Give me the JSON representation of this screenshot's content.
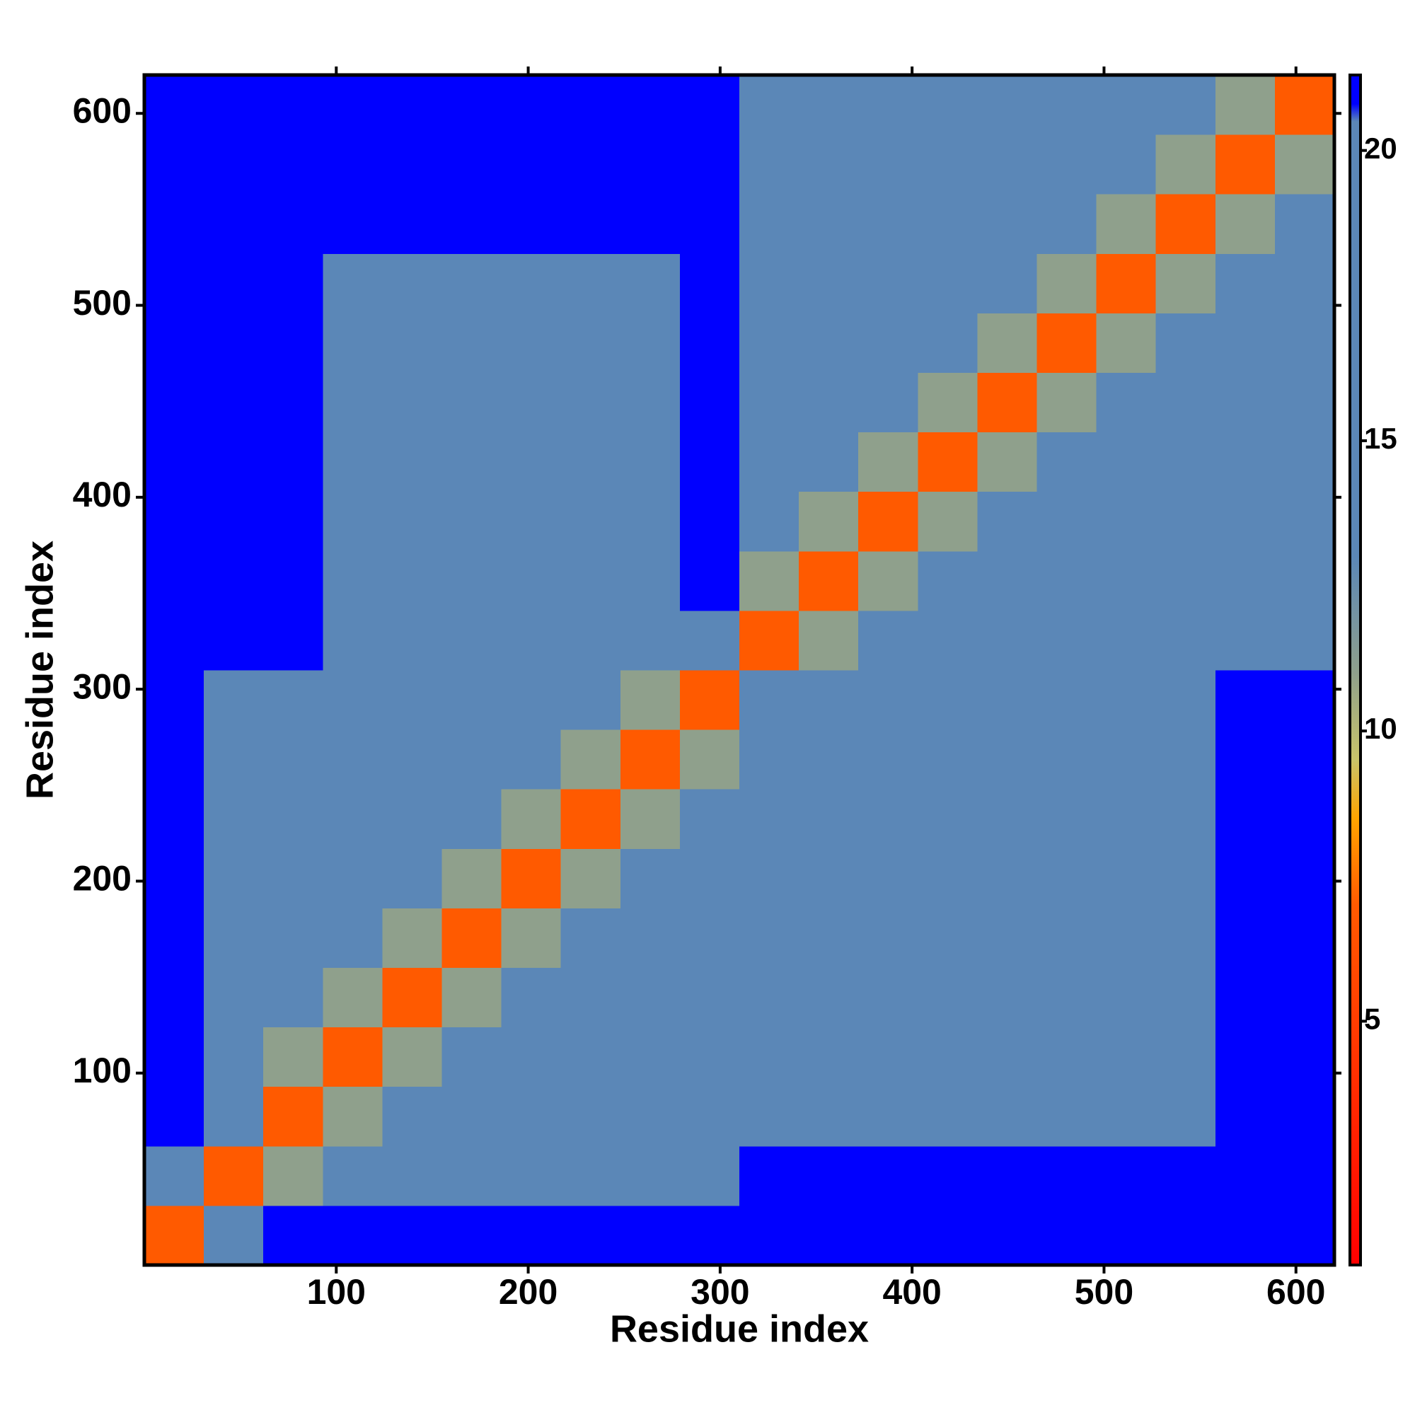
{
  "chart_data": {
    "type": "heatmap",
    "xlabel": "Residue index",
    "ylabel": "Residue index",
    "xlim": [
      0,
      620
    ],
    "ylim": [
      0,
      620
    ],
    "xticks": [
      100,
      200,
      300,
      400,
      500,
      600
    ],
    "yticks": [
      100,
      200,
      300,
      400,
      500,
      600
    ],
    "colorlim": [
      0.8,
      21.3
    ],
    "colorticks": [
      5,
      10,
      15,
      20
    ],
    "colorscale": [
      [
        0.8,
        "#ff0000"
      ],
      [
        7,
        "#ff5a00"
      ],
      [
        8.5,
        "#ffa500"
      ],
      [
        9.5,
        "#c9c46a"
      ],
      [
        11,
        "#8fa08c"
      ],
      [
        13,
        "#5b87b7"
      ],
      [
        20.5,
        "#5b87b7"
      ],
      [
        20.8,
        "#0000ff"
      ],
      [
        21.3,
        "#0000ff"
      ]
    ],
    "z": [
      [
        7,
        19,
        21,
        21,
        21,
        21,
        21,
        21,
        21,
        21,
        21,
        21,
        21,
        21,
        21,
        21,
        21,
        21,
        21,
        21
      ],
      [
        19,
        7,
        11,
        16,
        16,
        16,
        16,
        16,
        16,
        16,
        21,
        21,
        21,
        21,
        21,
        21,
        21,
        21,
        21,
        21
      ],
      [
        21,
        16,
        7,
        11,
        15,
        15,
        15,
        15,
        15,
        16,
        20,
        20,
        20,
        20,
        20,
        20,
        20,
        20,
        21,
        21
      ],
      [
        21,
        16,
        11,
        7,
        11,
        15,
        15,
        15,
        15,
        16,
        20,
        20,
        20,
        20,
        20,
        20,
        20,
        20,
        21,
        21
      ],
      [
        21,
        16,
        15,
        11,
        7,
        11,
        15,
        15,
        15,
        16,
        20,
        20,
        20,
        20,
        20,
        20,
        20,
        20,
        21,
        21
      ],
      [
        21,
        16,
        15,
        15,
        11,
        7,
        11,
        15,
        15,
        16,
        20,
        20,
        20,
        20,
        20,
        20,
        20,
        20,
        21,
        21
      ],
      [
        21,
        16,
        15,
        15,
        15,
        11,
        7,
        11,
        15,
        16,
        20,
        20,
        20,
        20,
        20,
        20,
        20,
        20,
        21,
        21
      ],
      [
        21,
        16,
        15,
        15,
        15,
        15,
        11,
        7,
        11,
        16,
        20,
        20,
        20,
        20,
        20,
        20,
        20,
        20,
        21,
        21
      ],
      [
        21,
        16,
        15,
        15,
        15,
        15,
        15,
        11,
        7,
        11,
        20,
        20,
        20,
        20,
        20,
        20,
        20,
        20,
        21,
        21
      ],
      [
        21,
        16,
        16,
        16,
        16,
        16,
        16,
        16,
        11,
        7,
        13,
        20,
        20,
        20,
        20,
        20,
        20,
        20,
        21,
        21
      ],
      [
        21,
        21,
        21,
        20,
        20,
        20,
        20,
        20,
        20,
        13,
        7,
        11,
        15,
        15,
        15,
        15,
        15,
        15,
        15,
        16
      ],
      [
        21,
        21,
        21,
        20,
        20,
        20,
        20,
        20,
        20,
        21,
        11,
        7,
        11,
        15,
        15,
        15,
        15,
        15,
        15,
        16
      ],
      [
        21,
        21,
        21,
        20,
        20,
        20,
        20,
        20,
        20,
        21,
        15,
        11,
        7,
        11,
        15,
        15,
        15,
        15,
        15,
        16
      ],
      [
        21,
        21,
        21,
        20,
        20,
        20,
        20,
        20,
        20,
        21,
        15,
        15,
        11,
        7,
        11,
        15,
        15,
        15,
        15,
        16
      ],
      [
        21,
        21,
        21,
        20,
        20,
        20,
        20,
        20,
        20,
        21,
        15,
        15,
        15,
        11,
        7,
        11,
        15,
        15,
        15,
        16
      ],
      [
        21,
        21,
        21,
        20,
        20,
        20,
        20,
        20,
        20,
        21,
        15,
        15,
        15,
        15,
        11,
        7,
        11,
        15,
        15,
        16
      ],
      [
        21,
        21,
        21,
        20,
        20,
        20,
        20,
        20,
        20,
        21,
        15,
        15,
        15,
        15,
        15,
        11,
        7,
        11,
        15,
        16
      ],
      [
        21,
        21,
        21,
        21,
        21,
        21,
        21,
        21,
        21,
        21,
        15,
        15,
        15,
        15,
        15,
        15,
        11,
        7,
        11,
        16
      ],
      [
        21,
        21,
        21,
        21,
        21,
        21,
        21,
        21,
        21,
        21,
        15,
        15,
        15,
        15,
        15,
        15,
        15,
        11,
        7,
        11
      ],
      [
        21,
        21,
        21,
        21,
        21,
        21,
        21,
        21,
        21,
        21,
        16,
        16,
        16,
        16,
        16,
        16,
        16,
        16,
        11,
        7
      ]
    ]
  }
}
